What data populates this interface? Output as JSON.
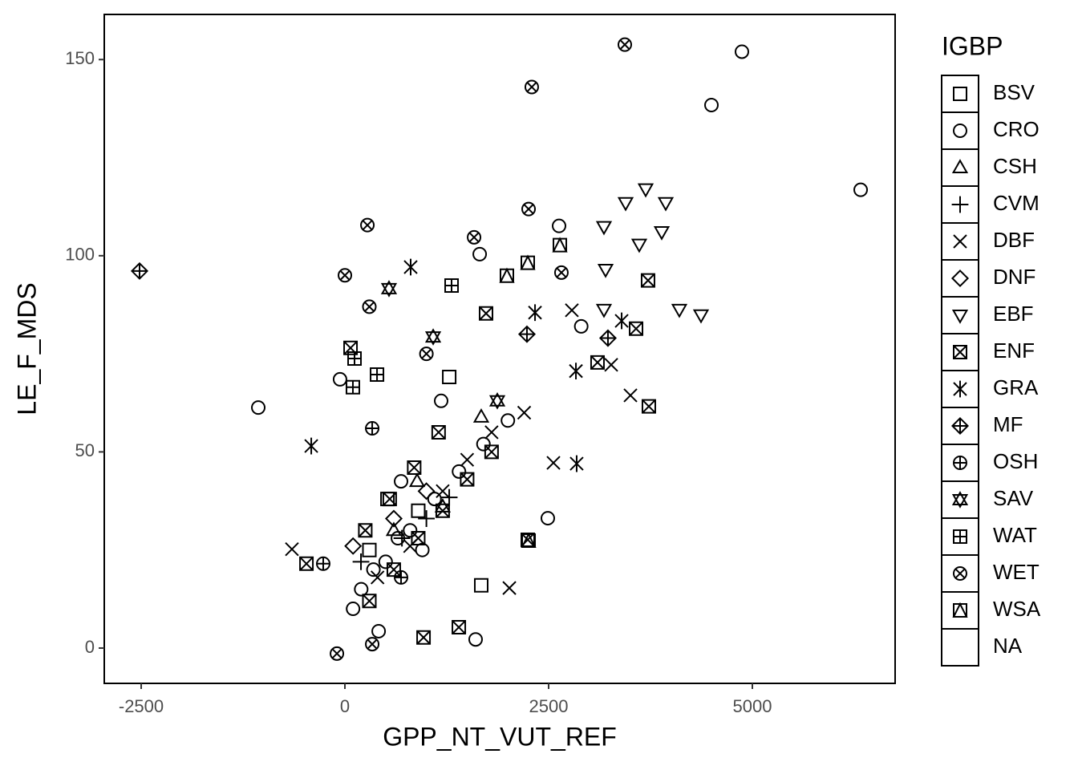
{
  "chart_data": {
    "type": "scatter",
    "x_label": "GPP_NT_VUT_REF",
    "y_label": "LE_F_MDS",
    "legend_title": "IGBP",
    "xlim": [
      -2953,
      6752
    ],
    "ylim": [
      -9,
      161.5
    ],
    "xticks": [
      -2500,
      0,
      2500,
      5000
    ],
    "yticks": [
      0,
      50,
      100,
      150
    ],
    "grid": false,
    "legend": "right",
    "color": "#000000",
    "series": [
      {
        "name": "BSV",
        "shape": "square",
        "x": [
          522,
          1280,
          1673,
          300,
          900
        ],
        "y": [
          38,
          69.1,
          16,
          25,
          35
        ]
      },
      {
        "name": "CRO",
        "shape": "circle",
        "x": [
          4498,
          4872,
          6329,
          -1063,
          1604,
          2490,
          1654,
          -60,
          414,
          689,
          1181,
          2628,
          2900,
          200,
          500,
          800,
          1100,
          1400,
          1700,
          2000,
          100,
          350,
          650,
          950
        ],
        "y": [
          138.4,
          152,
          116.8,
          61.3,
          2.2,
          33.1,
          100.4,
          68.5,
          4.3,
          42.5,
          63,
          107.6,
          82,
          15,
          22,
          30,
          38,
          45,
          52,
          58,
          10,
          20,
          28,
          25
        ]
      },
      {
        "name": "CSH",
        "shape": "triangle",
        "x": [
          886,
          1673,
          600,
          1200
        ],
        "y": [
          42.5,
          58.9,
          30,
          36
        ]
      },
      {
        "name": "CVM",
        "shape": "plus",
        "x": [
          197,
          1280,
          700,
          1000
        ],
        "y": [
          22,
          38.4,
          28,
          33
        ]
      },
      {
        "name": "DBF",
        "shape": "cross",
        "x": [
          -650,
          2018,
          3504,
          3268,
          2785,
          2559,
          400,
          800,
          1200,
          1500,
          1800,
          2200
        ],
        "y": [
          25.2,
          15.3,
          64.4,
          72.2,
          86.1,
          47.2,
          18,
          26,
          40,
          48,
          55,
          60
        ]
      },
      {
        "name": "DNF",
        "shape": "diamond",
        "x": [
          100,
          600,
          1000
        ],
        "y": [
          26,
          33,
          40
        ]
      },
      {
        "name": "EBF",
        "shape": "triangle-down",
        "x": [
          3445,
          3691,
          3937,
          4370,
          4104,
          3199,
          3612,
          3179,
          3888,
          3179
        ],
        "y": [
          113.5,
          117,
          113.5,
          84.9,
          86.3,
          96.5,
          102.9,
          107.4,
          106.1,
          86.3
        ]
      },
      {
        "name": "ENF",
        "shape": "square-cross",
        "x": [
          3730,
          -472,
          3720,
          3573,
          1398,
          965,
          2244,
          3100,
          1732,
          69,
          300,
          600,
          900,
          1200,
          1500,
          1800,
          250,
          550,
          850,
          1150
        ],
        "y": [
          61.6,
          21.5,
          93.7,
          81.4,
          5.3,
          2.7,
          27.6,
          72.8,
          85.3,
          76.5,
          12,
          20,
          28,
          35,
          43,
          50,
          30,
          38,
          46,
          55
        ]
      },
      {
        "name": "GRA",
        "shape": "asterisk",
        "x": [
          -413,
          807,
          2844,
          2333,
          2835,
          3396
        ],
        "y": [
          51.5,
          97.1,
          47,
          85.5,
          70.6,
          83.4
        ]
      },
      {
        "name": "MF",
        "shape": "diamond-plus",
        "x": [
          -2520,
          2234,
          3228
        ],
        "y": [
          96.1,
          80,
          79
        ]
      },
      {
        "name": "OSH",
        "shape": "circle-plus",
        "x": [
          -266,
          335,
          689
        ],
        "y": [
          21.5,
          56,
          18
        ]
      },
      {
        "name": "SAV",
        "shape": "star",
        "x": [
          541,
          1083,
          1870
        ],
        "y": [
          91.6,
          79.3,
          63
        ]
      },
      {
        "name": "WAT",
        "shape": "square-plus",
        "x": [
          118,
          98,
          394,
          1309
        ],
        "y": [
          73.8,
          66.5,
          69.7,
          92.4
        ]
      },
      {
        "name": "WET",
        "shape": "circle-cross",
        "x": [
          3435,
          2293,
          2254,
          276,
          1585,
          335,
          -98,
          2657,
          0,
          300,
          1000
        ],
        "y": [
          153.8,
          143,
          111.9,
          107.8,
          104.7,
          1,
          -1.4,
          95.7,
          95,
          87,
          75
        ]
      },
      {
        "name": "WSA",
        "shape": "square-triangle",
        "x": [
          2244,
          2638,
          1988,
          2254
        ],
        "y": [
          98.2,
          102.7,
          94.9,
          27.4
        ]
      },
      {
        "name": "NA",
        "shape": "none",
        "x": [],
        "y": []
      }
    ]
  }
}
